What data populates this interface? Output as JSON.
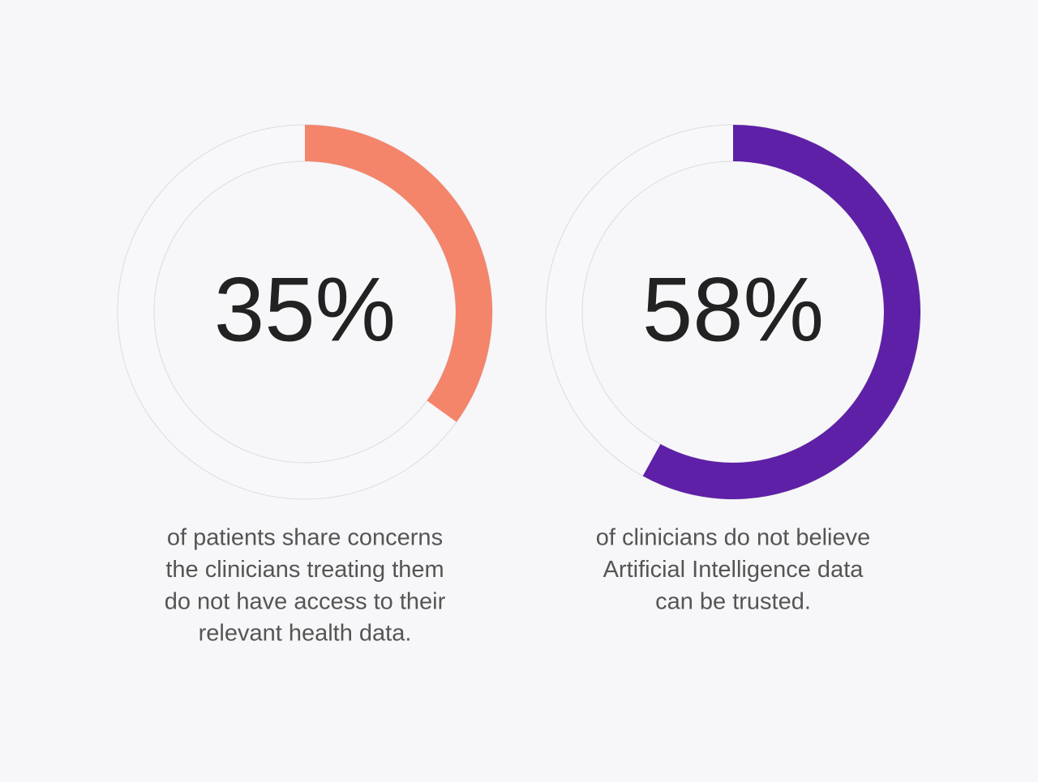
{
  "chart_data": [
    {
      "type": "donut",
      "values": [
        35
      ],
      "value_labels": [
        "35%"
      ],
      "color": "#f4846a",
      "caption": [
        "of patients share concerns",
        "the clinicians treating them",
        "do not have access to their",
        "relevant health data."
      ]
    },
    {
      "type": "donut",
      "values": [
        58
      ],
      "value_labels": [
        "58%"
      ],
      "color": "#5e20a6",
      "caption": [
        "of clinicians do not believe",
        "Artificial Intelligence data",
        "can be trusted."
      ]
    }
  ]
}
